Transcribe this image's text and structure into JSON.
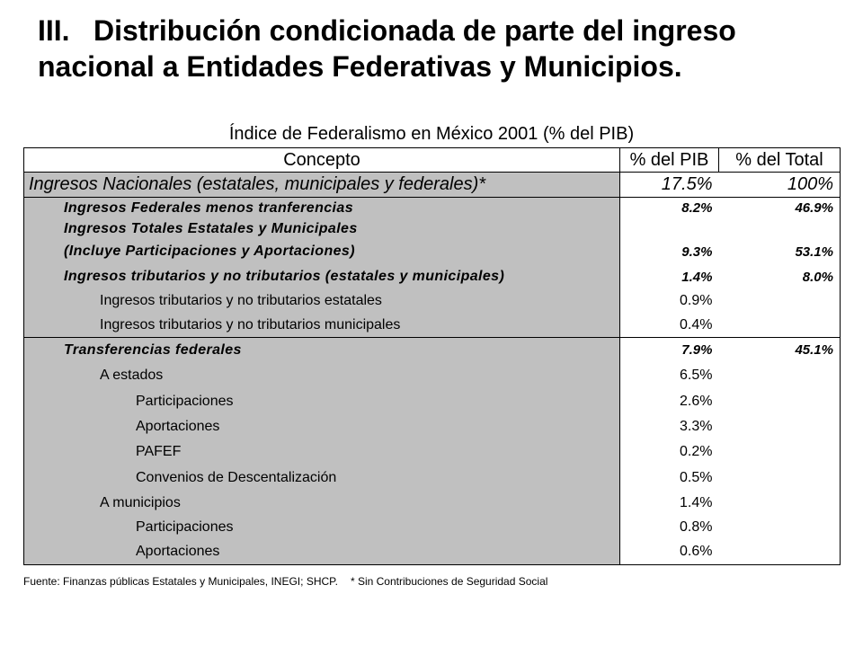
{
  "slide": {
    "number": "III.",
    "title": "Distribución condicionada de parte del ingreso nacional a Entidades Federativas y Municipios."
  },
  "table": {
    "title": "Índice de Federalismo en México 2001 (% del PIB)",
    "headers": {
      "concept": "Concepto",
      "pib": "% del PIB",
      "total": "% del Total"
    },
    "national": {
      "label": "Ingresos Nacionales (estatales, municipales y federales)*",
      "pib": "17.5%",
      "total": "100%"
    },
    "rows": [
      {
        "label": "Ingresos Federales menos tranferencias",
        "pib": "8.2%",
        "total": "46.9%"
      },
      {
        "label": "Ingresos Totales Estatales y Municipales",
        "pib": "",
        "total": ""
      },
      {
        "label": "(Incluye Participaciones y Aportaciones)",
        "pib": "9.3%",
        "total": "53.1%"
      },
      {
        "label": "Ingresos tributarios y no tributarios (estatales y municipales)",
        "pib": "1.4%",
        "total": "8.0%"
      },
      {
        "label": "Ingresos tributarios y no tributarios estatales",
        "pib": "0.9%",
        "total": ""
      },
      {
        "label": "Ingresos  tributarios y no tributarios municipales",
        "pib": "0.4%",
        "total": ""
      },
      {
        "label": "Transferencias federales",
        "pib": "7.9%",
        "total": "45.1%"
      },
      {
        "label": "A estados",
        "pib": "6.5%",
        "total": ""
      },
      {
        "label": "Participaciones",
        "pib": "2.6%",
        "total": ""
      },
      {
        "label": "Aportaciones",
        "pib": "3.3%",
        "total": ""
      },
      {
        "label": "PAFEF",
        "pib": "0.2%",
        "total": ""
      },
      {
        "label": "Convenios de Descentalización",
        "pib": "0.5%",
        "total": ""
      },
      {
        "label": "A municipios",
        "pib": "1.4%",
        "total": ""
      },
      {
        "label": "Participaciones",
        "pib": "0.8%",
        "total": ""
      },
      {
        "label": "Aportaciones",
        "pib": "0.6%",
        "total": ""
      }
    ],
    "source": "Fuente: Finanzas públicas Estatales y Municipales, INEGI; SHCP.",
    "note": "* Sin Contribuciones de Seguridad Social"
  }
}
